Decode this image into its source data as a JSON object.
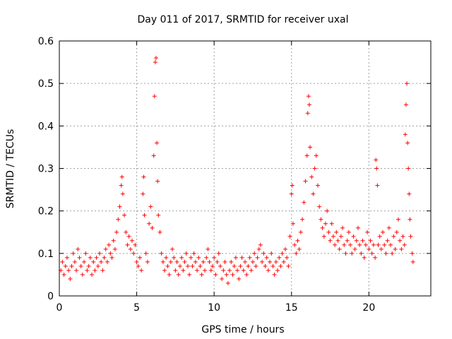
{
  "chart_data": {
    "type": "scatter",
    "title": "Day 011 of 2017, SRMTID for receiver uxal",
    "xlabel": "GPS time / hours",
    "ylabel": "SRMTID / TECUs",
    "xlim": [
      0,
      24
    ],
    "ylim": [
      0,
      0.6
    ],
    "xticks": [
      0,
      5,
      10,
      15,
      20
    ],
    "xtick_labels": [
      "0",
      "5",
      "10",
      "15",
      "20"
    ],
    "yticks": [
      0,
      0.1,
      0.2,
      0.3,
      0.4,
      0.5,
      0.6
    ],
    "ytick_labels": [
      "0",
      "0.1",
      "0.2",
      "0.3",
      "0.4",
      "0.5",
      "0.6"
    ],
    "grid": true,
    "marker": "+",
    "color": "#ff0000",
    "series": [
      {
        "name": "SRMTID",
        "points": [
          [
            0.1,
            0.06
          ],
          [
            0.2,
            0.08
          ],
          [
            0.3,
            0.05
          ],
          [
            0.4,
            0.07
          ],
          [
            0.5,
            0.09
          ],
          [
            0.6,
            0.06
          ],
          [
            0.7,
            0.04
          ],
          [
            0.8,
            0.07
          ],
          [
            0.9,
            0.1
          ],
          [
            1.0,
            0.08
          ],
          [
            1.1,
            0.06
          ],
          [
            1.2,
            0.11
          ],
          [
            1.3,
            0.09
          ],
          [
            1.4,
            0.07
          ],
          [
            1.5,
            0.05
          ],
          [
            1.6,
            0.08
          ],
          [
            1.7,
            0.1
          ],
          [
            1.8,
            0.06
          ],
          [
            1.9,
            0.07
          ],
          [
            2.0,
            0.09
          ],
          [
            2.1,
            0.05
          ],
          [
            2.2,
            0.08
          ],
          [
            2.3,
            0.06
          ],
          [
            2.4,
            0.09
          ],
          [
            2.5,
            0.07
          ],
          [
            2.6,
            0.1
          ],
          [
            2.7,
            0.08
          ],
          [
            2.8,
            0.06
          ],
          [
            2.9,
            0.09
          ],
          [
            3.0,
            0.11
          ],
          [
            3.1,
            0.08
          ],
          [
            3.2,
            0.12
          ],
          [
            3.3,
            0.1
          ],
          [
            3.4,
            0.09
          ],
          [
            3.5,
            0.13
          ],
          [
            3.6,
            0.11
          ],
          [
            3.7,
            0.15
          ],
          [
            3.8,
            0.18
          ],
          [
            3.9,
            0.21
          ],
          [
            4.0,
            0.26
          ],
          [
            4.05,
            0.28
          ],
          [
            4.1,
            0.24
          ],
          [
            4.2,
            0.19
          ],
          [
            4.3,
            0.15
          ],
          [
            4.4,
            0.12
          ],
          [
            4.5,
            0.14
          ],
          [
            4.6,
            0.11
          ],
          [
            4.7,
            0.13
          ],
          [
            4.8,
            0.1
          ],
          [
            4.9,
            0.12
          ],
          [
            5.0,
            0.08
          ],
          [
            5.1,
            0.07
          ],
          [
            5.2,
            0.09
          ],
          [
            5.3,
            0.06
          ],
          [
            5.4,
            0.24
          ],
          [
            5.45,
            0.28
          ],
          [
            5.5,
            0.19
          ],
          [
            5.6,
            0.1
          ],
          [
            5.7,
            0.08
          ],
          [
            5.8,
            0.17
          ],
          [
            5.9,
            0.21
          ],
          [
            6.0,
            0.16
          ],
          [
            6.1,
            0.33
          ],
          [
            6.15,
            0.47
          ],
          [
            6.2,
            0.55
          ],
          [
            6.25,
            0.56
          ],
          [
            6.3,
            0.36
          ],
          [
            6.35,
            0.27
          ],
          [
            6.4,
            0.19
          ],
          [
            6.5,
            0.15
          ],
          [
            6.6,
            0.1
          ],
          [
            6.7,
            0.08
          ],
          [
            6.8,
            0.06
          ],
          [
            6.9,
            0.09
          ],
          [
            7.0,
            0.07
          ],
          [
            7.1,
            0.05
          ],
          [
            7.2,
            0.08
          ],
          [
            7.3,
            0.11
          ],
          [
            7.4,
            0.09
          ],
          [
            7.5,
            0.06
          ],
          [
            7.6,
            0.08
          ],
          [
            7.7,
            0.05
          ],
          [
            7.8,
            0.07
          ],
          [
            7.9,
            0.09
          ],
          [
            8.0,
            0.06
          ],
          [
            8.1,
            0.08
          ],
          [
            8.2,
            0.1
          ],
          [
            8.3,
            0.07
          ],
          [
            8.4,
            0.05
          ],
          [
            8.5,
            0.09
          ],
          [
            8.6,
            0.07
          ],
          [
            8.7,
            0.1
          ],
          [
            8.8,
            0.08
          ],
          [
            8.9,
            0.06
          ],
          [
            9.0,
            0.09
          ],
          [
            9.1,
            0.07
          ],
          [
            9.2,
            0.05
          ],
          [
            9.3,
            0.08
          ],
          [
            9.4,
            0.06
          ],
          [
            9.5,
            0.09
          ],
          [
            9.6,
            0.11
          ],
          [
            9.7,
            0.08
          ],
          [
            9.8,
            0.06
          ],
          [
            9.9,
            0.07
          ],
          [
            10.0,
            0.09
          ],
          [
            10.1,
            0.05
          ],
          [
            10.2,
            0.08
          ],
          [
            10.3,
            0.1
          ],
          [
            10.4,
            0.07
          ],
          [
            10.5,
            0.04
          ],
          [
            10.6,
            0.06
          ],
          [
            10.7,
            0.08
          ],
          [
            10.8,
            0.05
          ],
          [
            10.9,
            0.03
          ],
          [
            11.0,
            0.06
          ],
          [
            11.1,
            0.08
          ],
          [
            11.2,
            0.05
          ],
          [
            11.3,
            0.07
          ],
          [
            11.4,
            0.09
          ],
          [
            11.5,
            0.06
          ],
          [
            11.6,
            0.04
          ],
          [
            11.7,
            0.07
          ],
          [
            11.8,
            0.09
          ],
          [
            11.9,
            0.06
          ],
          [
            12.0,
            0.08
          ],
          [
            12.1,
            0.05
          ],
          [
            12.2,
            0.07
          ],
          [
            12.3,
            0.09
          ],
          [
            12.4,
            0.06
          ],
          [
            12.5,
            0.08
          ],
          [
            12.6,
            0.1
          ],
          [
            12.7,
            0.07
          ],
          [
            12.8,
            0.09
          ],
          [
            12.9,
            0.11
          ],
          [
            13.0,
            0.12
          ],
          [
            13.1,
            0.08
          ],
          [
            13.2,
            0.1
          ],
          [
            13.3,
            0.07
          ],
          [
            13.4,
            0.09
          ],
          [
            13.5,
            0.06
          ],
          [
            13.6,
            0.08
          ],
          [
            13.7,
            0.1
          ],
          [
            13.8,
            0.07
          ],
          [
            13.9,
            0.05
          ],
          [
            14.0,
            0.08
          ],
          [
            14.1,
            0.06
          ],
          [
            14.2,
            0.09
          ],
          [
            14.3,
            0.07
          ],
          [
            14.4,
            0.1
          ],
          [
            14.5,
            0.08
          ],
          [
            14.6,
            0.11
          ],
          [
            14.7,
            0.09
          ],
          [
            14.8,
            0.07
          ],
          [
            14.9,
            0.14
          ],
          [
            15.0,
            0.24
          ],
          [
            15.05,
            0.26
          ],
          [
            15.1,
            0.17
          ],
          [
            15.2,
            0.12
          ],
          [
            15.3,
            0.1
          ],
          [
            15.4,
            0.13
          ],
          [
            15.5,
            0.11
          ],
          [
            15.6,
            0.15
          ],
          [
            15.7,
            0.18
          ],
          [
            15.8,
            0.22
          ],
          [
            15.9,
            0.27
          ],
          [
            16.0,
            0.33
          ],
          [
            16.05,
            0.43
          ],
          [
            16.1,
            0.47
          ],
          [
            16.15,
            0.45
          ],
          [
            16.2,
            0.35
          ],
          [
            16.3,
            0.28
          ],
          [
            16.4,
            0.24
          ],
          [
            16.5,
            0.3
          ],
          [
            16.6,
            0.33
          ],
          [
            16.7,
            0.26
          ],
          [
            16.8,
            0.21
          ],
          [
            16.9,
            0.18
          ],
          [
            17.0,
            0.16
          ],
          [
            17.1,
            0.14
          ],
          [
            17.2,
            0.17
          ],
          [
            17.3,
            0.2
          ],
          [
            17.4,
            0.15
          ],
          [
            17.5,
            0.13
          ],
          [
            17.6,
            0.17
          ],
          [
            17.7,
            0.14
          ],
          [
            17.8,
            0.12
          ],
          [
            17.9,
            0.15
          ],
          [
            18.0,
            0.13
          ],
          [
            18.1,
            0.11
          ],
          [
            18.2,
            0.14
          ],
          [
            18.3,
            0.16
          ],
          [
            18.4,
            0.12
          ],
          [
            18.5,
            0.1
          ],
          [
            18.6,
            0.13
          ],
          [
            18.7,
            0.15
          ],
          [
            18.8,
            0.12
          ],
          [
            18.9,
            0.1
          ],
          [
            19.0,
            0.14
          ],
          [
            19.1,
            0.11
          ],
          [
            19.2,
            0.13
          ],
          [
            19.3,
            0.16
          ],
          [
            19.4,
            0.12
          ],
          [
            19.5,
            0.1
          ],
          [
            19.6,
            0.13
          ],
          [
            19.7,
            0.09
          ],
          [
            19.8,
            0.12
          ],
          [
            19.9,
            0.15
          ],
          [
            20.0,
            0.11
          ],
          [
            20.1,
            0.13
          ],
          [
            20.2,
            0.1
          ],
          [
            20.3,
            0.12
          ],
          [
            20.4,
            0.09
          ],
          [
            20.45,
            0.32
          ],
          [
            20.5,
            0.3
          ],
          [
            20.55,
            0.26
          ],
          [
            20.6,
            0.12
          ],
          [
            20.7,
            0.14
          ],
          [
            20.8,
            0.11
          ],
          [
            20.9,
            0.15
          ],
          [
            21.0,
            0.12
          ],
          [
            21.1,
            0.1
          ],
          [
            21.2,
            0.13
          ],
          [
            21.3,
            0.16
          ],
          [
            21.4,
            0.12
          ],
          [
            21.5,
            0.1
          ],
          [
            21.6,
            0.14
          ],
          [
            21.7,
            0.11
          ],
          [
            21.8,
            0.15
          ],
          [
            21.9,
            0.18
          ],
          [
            22.0,
            0.13
          ],
          [
            22.1,
            0.11
          ],
          [
            22.2,
            0.14
          ],
          [
            22.3,
            0.12
          ],
          [
            22.35,
            0.38
          ],
          [
            22.4,
            0.45
          ],
          [
            22.45,
            0.5
          ],
          [
            22.5,
            0.36
          ],
          [
            22.55,
            0.3
          ],
          [
            22.6,
            0.24
          ],
          [
            22.65,
            0.18
          ],
          [
            22.7,
            0.14
          ],
          [
            22.8,
            0.1
          ],
          [
            22.85,
            0.08
          ]
        ]
      }
    ]
  }
}
